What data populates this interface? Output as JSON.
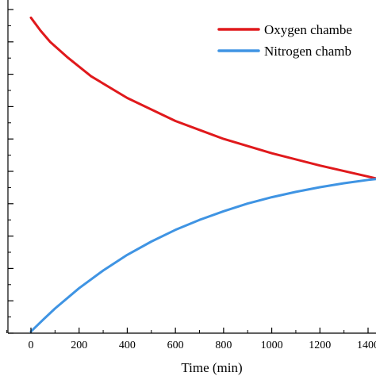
{
  "chart_data": {
    "type": "line",
    "title": "",
    "xlabel": "Time (min)",
    "ylabel": "",
    "xlim": [
      -90,
      1480
    ],
    "ylim": [
      0,
      1
    ],
    "x_ticks": [
      0,
      200,
      400,
      600,
      800,
      1000,
      1200,
      1400
    ],
    "x_tick_labels": [
      "0",
      "200",
      "400",
      "600",
      "800",
      "1000",
      "1200",
      "1400"
    ],
    "legend_position": "top-right",
    "grid": false,
    "series": [
      {
        "name": "Oxygen chambe",
        "color": "#e0191c",
        "x": [
          0,
          40,
          80,
          150,
          250,
          400,
          600,
          800,
          1000,
          1200,
          1400,
          1480
        ],
        "y": [
          0.947,
          0.908,
          0.874,
          0.829,
          0.771,
          0.706,
          0.637,
          0.583,
          0.54,
          0.503,
          0.47,
          0.457
        ]
      },
      {
        "name": "Nitrogen chamb",
        "color": "#3f94e3",
        "x": [
          0,
          50,
          100,
          200,
          300,
          400,
          500,
          600,
          700,
          800,
          900,
          1000,
          1100,
          1200,
          1300,
          1400,
          1480
        ],
        "y": [
          0.005,
          0.04,
          0.074,
          0.135,
          0.188,
          0.235,
          0.275,
          0.31,
          0.34,
          0.366,
          0.389,
          0.408,
          0.424,
          0.438,
          0.45,
          0.46,
          0.466
        ]
      }
    ]
  }
}
